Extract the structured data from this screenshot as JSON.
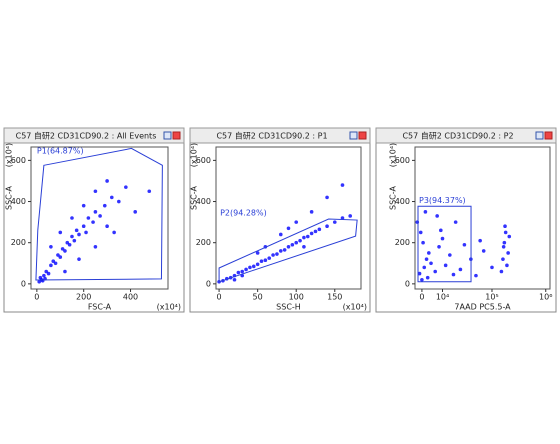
{
  "chart_data": [
    {
      "type": "scatter",
      "title": "C57 自研2 CD31CD90.2 : All Events",
      "x_label": "FSC-A",
      "y_label": "SSC-A",
      "x_multiplier": "(x10⁴)",
      "y_multiplier": "(x10⁴)",
      "color": "#0000ff",
      "gate_color": "#2a3fd6",
      "xlim": [
        -25,
        560
      ],
      "ylim": [
        -25,
        665
      ],
      "xticks": [
        0,
        200,
        400
      ],
      "yticks": [
        0,
        200,
        400,
        600
      ],
      "xscale": "linear",
      "x": [
        20,
        30,
        40,
        50,
        60,
        70,
        80,
        90,
        100,
        110,
        120,
        130,
        140,
        150,
        160,
        170,
        180,
        200,
        210,
        220,
        240,
        250,
        270,
        290,
        300,
        320,
        350,
        380,
        60,
        100,
        150,
        200,
        250,
        300,
        120,
        180,
        250,
        330,
        420,
        480,
        10,
        15,
        25,
        35
      ],
      "values": [
        20,
        40,
        60,
        50,
        90,
        110,
        100,
        140,
        130,
        170,
        160,
        200,
        190,
        230,
        210,
        260,
        240,
        280,
        250,
        320,
        300,
        350,
        330,
        380,
        280,
        420,
        400,
        470,
        180,
        250,
        320,
        380,
        450,
        500,
        60,
        120,
        180,
        250,
        350,
        450,
        10,
        30,
        15,
        25
      ],
      "gates": [
        {
          "label": "P1(64.87%)",
          "x": [
            30,
            404,
            536,
            532,
            -4,
            4
          ],
          "y": [
            576,
            658,
            576,
            24,
            19,
            261
          ]
        }
      ]
    },
    {
      "type": "scatter",
      "title": "C57 自研2 CD31CD90.2 : P1",
      "x_label": "SSC-H",
      "y_label": "SSC-A",
      "x_multiplier": "(x10⁴)",
      "y_multiplier": "(x10⁴)",
      "color": "#0000ff",
      "gate_color": "#2a3fd6",
      "xlim": [
        -4,
        184
      ],
      "ylim": [
        -25,
        665
      ],
      "xticks": [
        0,
        50,
        100,
        150
      ],
      "yticks": [
        0,
        200,
        400,
        600
      ],
      "xscale": "linear",
      "x": [
        0,
        5,
        10,
        15,
        20,
        25,
        30,
        35,
        40,
        45,
        50,
        55,
        60,
        65,
        70,
        75,
        80,
        85,
        90,
        95,
        100,
        105,
        110,
        115,
        120,
        125,
        130,
        140,
        150,
        160,
        170,
        60,
        80,
        100,
        120,
        140,
        160,
        50,
        90,
        30,
        20,
        110
      ],
      "values": [
        10,
        15,
        25,
        30,
        40,
        55,
        60,
        70,
        80,
        85,
        95,
        110,
        115,
        125,
        140,
        145,
        160,
        165,
        180,
        190,
        200,
        210,
        225,
        230,
        245,
        255,
        265,
        280,
        300,
        320,
        330,
        180,
        240,
        300,
        350,
        420,
        480,
        150,
        270,
        40,
        20,
        180
      ],
      "gates": [
        {
          "label": "P2(94.28%)",
          "x": [
            0,
            177,
            179,
            142,
            0
          ],
          "y": [
            10,
            232,
            310,
            315,
            77
          ]
        }
      ]
    },
    {
      "type": "scatter",
      "title": "C57 自研2 CD31CD90.2 : P2",
      "x_label": "7AAD PC5.5-A",
      "y_label": "SSC-A",
      "y_multiplier": "(x10⁴)",
      "color": "#0000ff",
      "gate_color": "#2a3fd6",
      "xlim": [
        -3000,
        1200000
      ],
      "ylim": [
        -25,
        665
      ],
      "xscale": "biexponential",
      "xticks": [
        0,
        {
          "value": 10000,
          "label": "10⁴"
        },
        {
          "value": 100000,
          "label": "10⁵"
        },
        {
          "value": 1000000,
          "label": "10⁶"
        }
      ],
      "yticks": [
        0,
        200,
        400,
        600
      ],
      "x": [
        0,
        -1000,
        1000,
        2000,
        3000,
        500,
        -500,
        4000,
        6000,
        8000,
        10000,
        12000,
        15000,
        20000,
        25000,
        30000,
        -2000,
        1500,
        40000,
        50000,
        60000,
        70000,
        150000,
        160000,
        170000,
        180000,
        190000,
        200000,
        210000,
        175000,
        165000,
        100000,
        7000,
        9000,
        2500,
        18000
      ],
      "values": [
        20,
        50,
        80,
        120,
        150,
        200,
        250,
        100,
        60,
        180,
        220,
        90,
        140,
        300,
        70,
        190,
        300,
        350,
        120,
        40,
        210,
        160,
        60,
        120,
        200,
        250,
        90,
        150,
        230,
        280,
        180,
        80,
        330,
        260,
        30,
        45
      ],
      "gates": [
        {
          "label": "P3(94.37%)",
          "x": [
            -1680,
            40300,
            40300,
            -1680
          ],
          "y": [
            377,
            377,
            10,
            10
          ]
        }
      ]
    }
  ]
}
